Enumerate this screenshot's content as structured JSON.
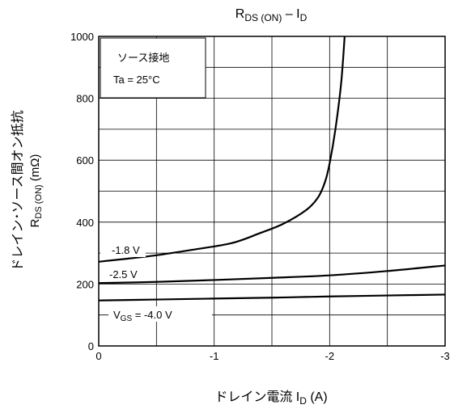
{
  "chart_data": {
    "type": "line",
    "title": {
      "main": "R",
      "sub": "DS (ON)",
      "tail": " – I",
      "tail_sub": "D"
    },
    "ylabel": {
      "line1": "ドレイン･ソース間オン抵抗",
      "line2_main": "R",
      "line2_sub": "DS (ON)",
      "line2_tail": "   (mΩ)"
    },
    "xlabel": {
      "main": "ドレイン電流   I",
      "sub": "D",
      "tail": "   (A)"
    },
    "xlim": [
      0,
      -3
    ],
    "ylim": [
      0,
      1000
    ],
    "x_ticks": [
      "0",
      "-1",
      "-2",
      "-3"
    ],
    "x_tick_values": [
      0,
      -1,
      -2,
      -3
    ],
    "y_ticks": [
      "0",
      "200",
      "400",
      "600",
      "800",
      "1000"
    ],
    "y_tick_values": [
      0,
      200,
      400,
      600,
      800,
      1000
    ],
    "grid": true,
    "conditions": [
      "ソース接地",
      "Ta = 25°C"
    ],
    "series": [
      {
        "name": "-1.8 V",
        "points": [
          [
            0,
            272
          ],
          [
            -0.2,
            280
          ],
          [
            -0.5,
            293
          ],
          [
            -0.8,
            310
          ],
          [
            -1.15,
            332
          ],
          [
            -1.4,
            365
          ],
          [
            -1.6,
            395
          ],
          [
            -1.8,
            440
          ],
          [
            -1.9,
            480
          ],
          [
            -1.96,
            530
          ],
          [
            -2.0,
            590
          ],
          [
            -2.05,
            700
          ],
          [
            -2.1,
            850
          ],
          [
            -2.13,
            1000
          ]
        ]
      },
      {
        "name": "-2.5 V",
        "points": [
          [
            0,
            203
          ],
          [
            -0.5,
            207
          ],
          [
            -1.0,
            213
          ],
          [
            -1.5,
            220
          ],
          [
            -2.0,
            228
          ],
          [
            -2.5,
            242
          ],
          [
            -3.0,
            260
          ]
        ]
      },
      {
        "name_main": "V",
        "name_sub": "GS",
        "name_tail": " = -4.0 V",
        "points": [
          [
            0,
            147
          ],
          [
            -0.5,
            150
          ],
          [
            -1.0,
            153
          ],
          [
            -1.5,
            156
          ],
          [
            -2.0,
            160
          ],
          [
            -2.5,
            163
          ],
          [
            -3.0,
            166
          ]
        ]
      }
    ]
  }
}
